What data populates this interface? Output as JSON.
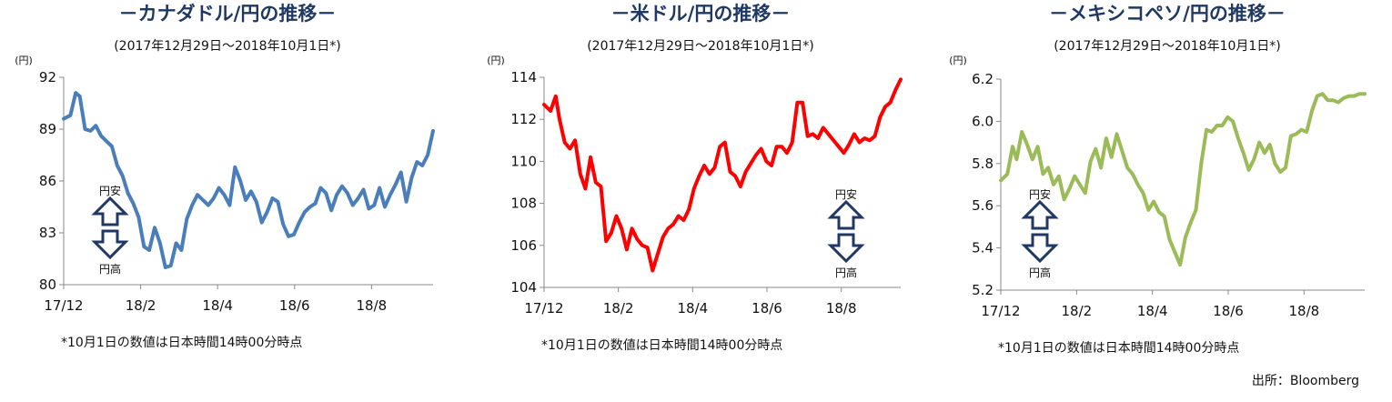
{
  "chart_data": [
    {
      "type": "line",
      "title": "－カナダドル/円の推移－",
      "subtitle": "(2017年12月29日～2018年10月1日*)",
      "ylabel": "(円)",
      "xlabel": "",
      "ylim": [
        80,
        92
      ],
      "yticks": [
        "80",
        "83",
        "86",
        "89",
        "92"
      ],
      "xticks": [
        "17/12",
        "18/2",
        "18/4",
        "18/6",
        "18/8"
      ],
      "grid": false,
      "arrow_up_label": "円安",
      "arrow_down_label": "円高",
      "note": "*10月1日の数値は日本時間14時00分時点",
      "color": "#4a7ebb",
      "series": [
        {
          "x": [
            "2017-12-29",
            "2018-01-03",
            "2018-01-07",
            "2018-01-10",
            "2018-01-14",
            "2018-01-18",
            "2018-01-22",
            "2018-01-26",
            "2018-01-30",
            "2018-02-03",
            "2018-02-07",
            "2018-02-11",
            "2018-02-15",
            "2018-02-19",
            "2018-02-23",
            "2018-02-27",
            "2018-03-03",
            "2018-03-07",
            "2018-03-11",
            "2018-03-15",
            "2018-03-19",
            "2018-03-23",
            "2018-03-27",
            "2018-03-31",
            "2018-04-04",
            "2018-04-08",
            "2018-04-12",
            "2018-04-16",
            "2018-04-20",
            "2018-04-24",
            "2018-04-28",
            "2018-05-02",
            "2018-05-06",
            "2018-05-10",
            "2018-05-14",
            "2018-05-18",
            "2018-05-22",
            "2018-05-26",
            "2018-05-30",
            "2018-06-03",
            "2018-06-07",
            "2018-06-11",
            "2018-06-15",
            "2018-06-19",
            "2018-06-23",
            "2018-06-27",
            "2018-07-01",
            "2018-07-05",
            "2018-07-09",
            "2018-07-13",
            "2018-07-17",
            "2018-07-21",
            "2018-07-25",
            "2018-07-29",
            "2018-08-02",
            "2018-08-06",
            "2018-08-10",
            "2018-08-14",
            "2018-08-18",
            "2018-08-22",
            "2018-08-26",
            "2018-08-30",
            "2018-09-03",
            "2018-09-07",
            "2018-09-11",
            "2018-09-15",
            "2018-09-19",
            "2018-09-23",
            "2018-09-27",
            "2018-10-01"
          ],
          "values": [
            89.6,
            89.8,
            91.1,
            90.9,
            89.0,
            88.9,
            89.2,
            88.6,
            88.3,
            88.0,
            86.9,
            86.3,
            85.3,
            84.7,
            83.9,
            82.2,
            82.0,
            83.3,
            82.4,
            81.0,
            81.1,
            82.4,
            82.0,
            83.8,
            84.6,
            85.2,
            84.9,
            84.6,
            85.0,
            85.6,
            85.2,
            84.6,
            86.8,
            86.0,
            84.9,
            85.4,
            84.8,
            83.6,
            84.2,
            85.0,
            84.8,
            83.5,
            82.8,
            82.9,
            83.6,
            84.2,
            84.5,
            84.7,
            85.6,
            85.3,
            84.3,
            85.2,
            85.7,
            85.3,
            84.6,
            85.0,
            85.5,
            84.4,
            84.6,
            85.6,
            84.5,
            85.2,
            85.8,
            86.5,
            84.8,
            86.2,
            87.1,
            86.9,
            87.5,
            88.9
          ]
        }
      ]
    },
    {
      "type": "line",
      "title": "－米ドル/円の推移－",
      "subtitle": "(2017年12月29日～2018年10月1日*)",
      "ylabel": "(円)",
      "xlabel": "",
      "ylim": [
        104,
        114
      ],
      "yticks": [
        "104",
        "106",
        "108",
        "110",
        "112",
        "114"
      ],
      "xticks": [
        "17/12",
        "18/2",
        "18/4",
        "18/6",
        "18/8"
      ],
      "grid": false,
      "arrow_up_label": "円安",
      "arrow_down_label": "円高",
      "note": "*10月1日の数値は日本時間14時00分時点",
      "color": "#ff0000",
      "series": [
        {
          "x": [
            "2017-12-29",
            "2018-01-03",
            "2018-01-07",
            "2018-01-10",
            "2018-01-14",
            "2018-01-18",
            "2018-01-22",
            "2018-01-26",
            "2018-01-30",
            "2018-02-03",
            "2018-02-07",
            "2018-02-11",
            "2018-02-15",
            "2018-02-19",
            "2018-02-23",
            "2018-02-27",
            "2018-03-03",
            "2018-03-07",
            "2018-03-11",
            "2018-03-15",
            "2018-03-19",
            "2018-03-23",
            "2018-03-27",
            "2018-03-31",
            "2018-04-04",
            "2018-04-08",
            "2018-04-12",
            "2018-04-16",
            "2018-04-20",
            "2018-04-24",
            "2018-04-28",
            "2018-05-02",
            "2018-05-06",
            "2018-05-10",
            "2018-05-14",
            "2018-05-18",
            "2018-05-22",
            "2018-05-26",
            "2018-05-30",
            "2018-06-03",
            "2018-06-07",
            "2018-06-11",
            "2018-06-15",
            "2018-06-19",
            "2018-06-23",
            "2018-06-27",
            "2018-07-01",
            "2018-07-05",
            "2018-07-09",
            "2018-07-13",
            "2018-07-17",
            "2018-07-21",
            "2018-07-25",
            "2018-07-29",
            "2018-08-02",
            "2018-08-06",
            "2018-08-10",
            "2018-08-14",
            "2018-08-18",
            "2018-08-22",
            "2018-08-26",
            "2018-08-30",
            "2018-09-03",
            "2018-09-07",
            "2018-09-11",
            "2018-09-15",
            "2018-09-19",
            "2018-09-23",
            "2018-09-27",
            "2018-10-01"
          ],
          "values": [
            112.7,
            112.4,
            113.1,
            112.0,
            110.9,
            110.6,
            111.0,
            109.4,
            108.7,
            110.2,
            109.0,
            108.8,
            106.2,
            106.6,
            107.4,
            106.8,
            105.8,
            106.8,
            106.3,
            106.0,
            105.9,
            104.8,
            105.6,
            106.4,
            106.8,
            107.0,
            107.4,
            107.2,
            107.7,
            108.7,
            109.3,
            109.8,
            109.4,
            109.7,
            110.7,
            110.9,
            109.5,
            109.3,
            108.8,
            109.5,
            109.9,
            110.3,
            110.6,
            110.0,
            109.8,
            110.7,
            110.7,
            110.4,
            110.9,
            112.8,
            112.8,
            111.2,
            111.3,
            111.1,
            111.6,
            111.3,
            111.0,
            110.7,
            110.4,
            110.8,
            111.3,
            110.9,
            111.1,
            111.0,
            111.2,
            112.1,
            112.6,
            112.8,
            113.4,
            113.9
          ]
        }
      ]
    },
    {
      "type": "line",
      "title": "－メキシコペソ/円の推移－",
      "subtitle": "(2017年12月29日～2018年10月1日*)",
      "ylabel": "(円)",
      "xlabel": "",
      "ylim": [
        5.2,
        6.2
      ],
      "yticks": [
        "5.2",
        "5.4",
        "5.6",
        "5.8",
        "6.0",
        "6.2"
      ],
      "xticks": [
        "17/12",
        "18/2",
        "18/4",
        "18/6",
        "18/8"
      ],
      "grid": false,
      "arrow_up_label": "円安",
      "arrow_down_label": "円高",
      "note": "*10月1日の数値は日本時間14時00分時点",
      "color": "#9bbb59",
      "series": [
        {
          "x": [
            "2017-12-29",
            "2018-01-03",
            "2018-01-07",
            "2018-01-10",
            "2018-01-14",
            "2018-01-18",
            "2018-01-22",
            "2018-01-26",
            "2018-01-30",
            "2018-02-03",
            "2018-02-07",
            "2018-02-11",
            "2018-02-15",
            "2018-02-19",
            "2018-02-23",
            "2018-02-27",
            "2018-03-03",
            "2018-03-07",
            "2018-03-11",
            "2018-03-15",
            "2018-03-19",
            "2018-03-23",
            "2018-03-27",
            "2018-03-31",
            "2018-04-04",
            "2018-04-08",
            "2018-04-12",
            "2018-04-16",
            "2018-04-20",
            "2018-04-24",
            "2018-04-28",
            "2018-05-02",
            "2018-05-06",
            "2018-05-10",
            "2018-05-14",
            "2018-05-18",
            "2018-05-22",
            "2018-05-26",
            "2018-05-30",
            "2018-06-03",
            "2018-06-07",
            "2018-06-11",
            "2018-06-15",
            "2018-06-19",
            "2018-06-23",
            "2018-06-27",
            "2018-07-01",
            "2018-07-05",
            "2018-07-09",
            "2018-07-13",
            "2018-07-17",
            "2018-07-21",
            "2018-07-25",
            "2018-07-29",
            "2018-08-02",
            "2018-08-06",
            "2018-08-10",
            "2018-08-14",
            "2018-08-18",
            "2018-08-22",
            "2018-08-26",
            "2018-08-30",
            "2018-09-03",
            "2018-09-07",
            "2018-09-11",
            "2018-09-15",
            "2018-09-19",
            "2018-09-23",
            "2018-09-27",
            "2018-10-01"
          ],
          "values": [
            5.72,
            5.75,
            5.88,
            5.82,
            5.95,
            5.89,
            5.82,
            5.88,
            5.75,
            5.78,
            5.7,
            5.74,
            5.63,
            5.68,
            5.74,
            5.7,
            5.66,
            5.81,
            5.87,
            5.78,
            5.92,
            5.83,
            5.94,
            5.86,
            5.78,
            5.75,
            5.7,
            5.66,
            5.58,
            5.62,
            5.57,
            5.55,
            5.44,
            5.38,
            5.32,
            5.45,
            5.52,
            5.58,
            5.8,
            5.96,
            5.95,
            5.98,
            5.98,
            6.02,
            6.0,
            5.92,
            5.85,
            5.77,
            5.82,
            5.9,
            5.85,
            5.89,
            5.8,
            5.76,
            5.78,
            5.93,
            5.94,
            5.96,
            5.95,
            6.05,
            6.12,
            6.13,
            6.1,
            6.1,
            6.09,
            6.11,
            6.12,
            6.12,
            6.13,
            6.13
          ]
        }
      ]
    }
  ],
  "footer": {
    "source": "出所：Bloomberg"
  }
}
